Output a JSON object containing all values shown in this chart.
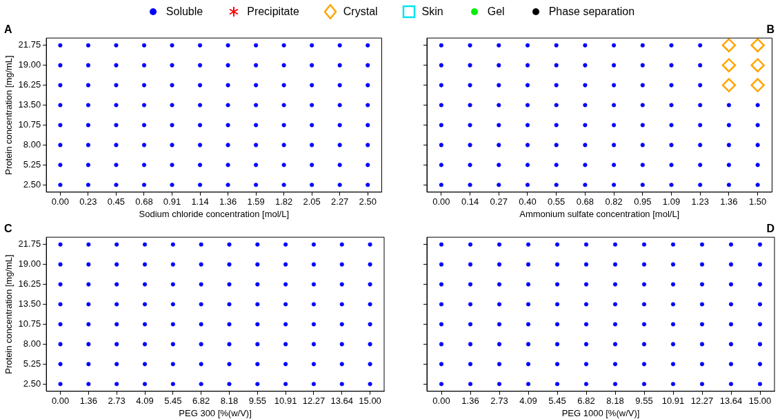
{
  "chart_data": [
    {
      "type": "scatter",
      "title": "A",
      "xlabel": "Sodium chloride concentration [mol/L]",
      "ylabel": "Protein concentration [mg/mL]",
      "legend": "top",
      "categories": [
        "0.00",
        "0.23",
        "0.45",
        "0.68",
        "0.91",
        "1.14",
        "1.36",
        "1.59",
        "1.82",
        "2.05",
        "2.27",
        "2.50"
      ],
      "ylim": [
        1.5,
        22.75
      ],
      "yticks": [
        {
          "value": 2.5,
          "label": "2.50"
        },
        {
          "value": 5.25,
          "label": "5.25"
        },
        {
          "value": 8,
          "label": "8.00"
        },
        {
          "value": 10.75,
          "label": "10.75"
        },
        {
          "value": 13.5,
          "label": "13.50"
        },
        {
          "value": 16.25,
          "label": "16.25"
        },
        {
          "value": 19,
          "label": "19.00"
        },
        {
          "value": 21.75,
          "label": "21.75"
        }
      ],
      "series": [
        {
          "name": "Soluble",
          "color": "#0000ff",
          "marker": "circle",
          "x": [
            "0.00",
            "0.00",
            "0.00",
            "0.00",
            "0.00",
            "0.00",
            "0.00",
            "0.00",
            "0.23",
            "0.23",
            "0.23",
            "0.23",
            "0.23",
            "0.23",
            "0.23",
            "0.23",
            "0.45",
            "0.45",
            "0.45",
            "0.45",
            "0.45",
            "0.45",
            "0.45",
            "0.45",
            "0.68",
            "0.68",
            "0.68",
            "0.68",
            "0.68",
            "0.68",
            "0.68",
            "0.68",
            "0.91",
            "0.91",
            "0.91",
            "0.91",
            "0.91",
            "0.91",
            "0.91",
            "0.91",
            "1.14",
            "1.14",
            "1.14",
            "1.14",
            "1.14",
            "1.14",
            "1.14",
            "1.14",
            "1.36",
            "1.36",
            "1.36",
            "1.36",
            "1.36",
            "1.36",
            "1.36",
            "1.36",
            "1.59",
            "1.59",
            "1.59",
            "1.59",
            "1.59",
            "1.59",
            "1.59",
            "1.59",
            "1.82",
            "1.82",
            "1.82",
            "1.82",
            "1.82",
            "1.82",
            "1.82",
            "1.82",
            "2.05",
            "2.05",
            "2.05",
            "2.05",
            "2.05",
            "2.05",
            "2.05",
            "2.05",
            "2.27",
            "2.27",
            "2.27",
            "2.27",
            "2.27",
            "2.27",
            "2.27",
            "2.27",
            "2.50",
            "2.50",
            "2.50",
            "2.50",
            "2.50",
            "2.50",
            "2.50",
            "2.50"
          ],
          "values": [
            2.5,
            5.25,
            8,
            10.75,
            13.5,
            16.25,
            19,
            21.75,
            2.5,
            5.25,
            8,
            10.75,
            13.5,
            16.25,
            19,
            21.75,
            2.5,
            5.25,
            8,
            10.75,
            13.5,
            16.25,
            19,
            21.75,
            2.5,
            5.25,
            8,
            10.75,
            13.5,
            16.25,
            19,
            21.75,
            2.5,
            5.25,
            8,
            10.75,
            13.5,
            16.25,
            19,
            21.75,
            2.5,
            5.25,
            8,
            10.75,
            13.5,
            16.25,
            19,
            21.75,
            2.5,
            5.25,
            8,
            10.75,
            13.5,
            16.25,
            19,
            21.75,
            2.5,
            5.25,
            8,
            10.75,
            13.5,
            16.25,
            19,
            21.75,
            2.5,
            5.25,
            8,
            10.75,
            13.5,
            16.25,
            19,
            21.75,
            2.5,
            5.25,
            8,
            10.75,
            13.5,
            16.25,
            19,
            21.75,
            2.5,
            5.25,
            8,
            10.75,
            13.5,
            16.25,
            19,
            21.75,
            2.5,
            5.25,
            8,
            10.75,
            13.5,
            16.25,
            19,
            21.75
          ]
        },
        {
          "name": "Precipitate",
          "color": "#ff0000",
          "marker": "star",
          "values": [
            null,
            null,
            null,
            null,
            null,
            null,
            null,
            null,
            null,
            null,
            null,
            null
          ]
        },
        {
          "name": "Crystal",
          "color": "#ffa500",
          "marker": "diamond",
          "values": [
            null,
            null,
            null,
            null,
            null,
            null,
            null,
            null,
            null,
            null,
            null,
            null
          ]
        },
        {
          "name": "Skin",
          "color": "#00e5ee",
          "marker": "square",
          "values": [
            null,
            null,
            null,
            null,
            null,
            null,
            null,
            null,
            null,
            null,
            null,
            null
          ]
        },
        {
          "name": "Gel",
          "color": "#00ee00",
          "marker": "circle",
          "values": [
            null,
            null,
            null,
            null,
            null,
            null,
            null,
            null,
            null,
            null,
            null,
            null
          ]
        },
        {
          "name": "Phase separation",
          "color": "#000000",
          "marker": "circle",
          "values": [
            null,
            null,
            null,
            null,
            null,
            null,
            null,
            null,
            null,
            null,
            null,
            null
          ]
        }
      ]
    },
    {
      "type": "scatter",
      "title": "B",
      "xlabel": "Ammonium sulfate concentration [mol/L]",
      "tick_labels": "x",
      "categories": [
        "0.00",
        "0.14",
        "0.27",
        "0.40",
        "0.55",
        "0.68",
        "0.82",
        "0.95",
        "1.09",
        "1.23",
        "1.36",
        "1.50"
      ],
      "ylim": [
        1.5,
        22.75
      ],
      "yticks": [
        {
          "value": 2.5,
          "label": null
        },
        {
          "value": 5.25,
          "label": null
        },
        {
          "value": 8,
          "label": null
        },
        {
          "value": 10.75,
          "label": null
        },
        {
          "value": 13.5,
          "label": null
        },
        {
          "value": 16.25,
          "label": null
        },
        {
          "value": 19,
          "label": null
        },
        {
          "value": 21.75,
          "label": null
        }
      ],
      "series": [
        {
          "color": "#0000ff",
          "marker": "circle",
          "x": [
            "0.00",
            "0.00",
            "0.00",
            "0.00",
            "0.00",
            "0.00",
            "0.00",
            "0.00",
            "0.14",
            "0.14",
            "0.14",
            "0.14",
            "0.14",
            "0.14",
            "0.14",
            "0.14",
            "0.27",
            "0.27",
            "0.27",
            "0.27",
            "0.27",
            "0.27",
            "0.27",
            "0.27",
            "0.40",
            "0.40",
            "0.40",
            "0.40",
            "0.40",
            "0.40",
            "0.40",
            "0.40",
            "0.55",
            "0.55",
            "0.55",
            "0.55",
            "0.55",
            "0.55",
            "0.55",
            "0.55",
            "0.68",
            "0.68",
            "0.68",
            "0.68",
            "0.68",
            "0.68",
            "0.68",
            "0.68",
            "0.82",
            "0.82",
            "0.82",
            "0.82",
            "0.82",
            "0.82",
            "0.82",
            "0.82",
            "0.95",
            "0.95",
            "0.95",
            "0.95",
            "0.95",
            "0.95",
            "0.95",
            "0.95",
            "1.09",
            "1.09",
            "1.09",
            "1.09",
            "1.09",
            "1.09",
            "1.09",
            "1.09",
            "1.23",
            "1.23",
            "1.23",
            "1.23",
            "1.23",
            "1.23",
            "1.23",
            "1.23",
            "1.36",
            "1.36",
            "1.36",
            "1.36",
            "1.36",
            "1.50",
            "1.50",
            "1.50",
            "1.50",
            "1.50"
          ],
          "values": [
            2.5,
            5.25,
            8,
            10.75,
            13.5,
            16.25,
            19,
            21.75,
            2.5,
            5.25,
            8,
            10.75,
            13.5,
            16.25,
            19,
            21.75,
            2.5,
            5.25,
            8,
            10.75,
            13.5,
            16.25,
            19,
            21.75,
            2.5,
            5.25,
            8,
            10.75,
            13.5,
            16.25,
            19,
            21.75,
            2.5,
            5.25,
            8,
            10.75,
            13.5,
            16.25,
            19,
            21.75,
            2.5,
            5.25,
            8,
            10.75,
            13.5,
            16.25,
            19,
            21.75,
            2.5,
            5.25,
            8,
            10.75,
            13.5,
            16.25,
            19,
            21.75,
            2.5,
            5.25,
            8,
            10.75,
            13.5,
            16.25,
            19,
            21.75,
            2.5,
            5.25,
            8,
            10.75,
            13.5,
            16.25,
            19,
            21.75,
            2.5,
            5.25,
            8,
            10.75,
            13.5,
            16.25,
            19,
            21.75,
            2.5,
            5.25,
            8,
            10.75,
            13.5,
            2.5,
            5.25,
            8,
            10.75,
            13.5
          ]
        },
        {
          "color": "#ffa500",
          "marker": "diamond",
          "x": [
            "1.36",
            "1.36",
            "1.36",
            "1.50",
            "1.50",
            "1.50"
          ],
          "values": [
            16.25,
            19,
            21.75,
            16.25,
            19,
            21.75
          ]
        }
      ]
    },
    {
      "type": "scatter",
      "title": "C",
      "xlabel": "PEG 300 [%(w/V)]",
      "ylabel": "Protein concentration [mg/mL]",
      "categories": [
        "0.00",
        "1.36",
        "2.73",
        "4.09",
        "5.45",
        "6.82",
        "8.18",
        "9.55",
        "10.91",
        "12.27",
        "13.64",
        "15.00"
      ],
      "ylim": [
        1.5,
        22.75
      ],
      "yticks": [
        {
          "value": 2.5,
          "label": "2.50"
        },
        {
          "value": 5.25,
          "label": "5.25"
        },
        {
          "value": 8,
          "label": "8.00"
        },
        {
          "value": 10.75,
          "label": "10.75"
        },
        {
          "value": 13.5,
          "label": "13.50"
        },
        {
          "value": 16.25,
          "label": "16.25"
        },
        {
          "value": 19,
          "label": "19.00"
        },
        {
          "value": 21.75,
          "label": "21.75"
        }
      ],
      "series": [
        {
          "color": "#0000ff",
          "marker": "circle",
          "x": [
            "0.00",
            "0.00",
            "0.00",
            "0.00",
            "0.00",
            "0.00",
            "0.00",
            "0.00",
            "1.36",
            "1.36",
            "1.36",
            "1.36",
            "1.36",
            "1.36",
            "1.36",
            "1.36",
            "2.73",
            "2.73",
            "2.73",
            "2.73",
            "2.73",
            "2.73",
            "2.73",
            "2.73",
            "4.09",
            "4.09",
            "4.09",
            "4.09",
            "4.09",
            "4.09",
            "4.09",
            "4.09",
            "5.45",
            "5.45",
            "5.45",
            "5.45",
            "5.45",
            "5.45",
            "5.45",
            "5.45",
            "6.82",
            "6.82",
            "6.82",
            "6.82",
            "6.82",
            "6.82",
            "6.82",
            "6.82",
            "8.18",
            "8.18",
            "8.18",
            "8.18",
            "8.18",
            "8.18",
            "8.18",
            "8.18",
            "9.55",
            "9.55",
            "9.55",
            "9.55",
            "9.55",
            "9.55",
            "9.55",
            "9.55",
            "10.91",
            "10.91",
            "10.91",
            "10.91",
            "10.91",
            "10.91",
            "10.91",
            "10.91",
            "12.27",
            "12.27",
            "12.27",
            "12.27",
            "12.27",
            "12.27",
            "12.27",
            "12.27",
            "13.64",
            "13.64",
            "13.64",
            "13.64",
            "13.64",
            "13.64",
            "13.64",
            "13.64",
            "15.00",
            "15.00",
            "15.00",
            "15.00",
            "15.00",
            "15.00",
            "15.00",
            "15.00"
          ],
          "values": [
            2.5,
            5.25,
            8,
            10.75,
            13.5,
            16.25,
            19,
            21.75,
            2.5,
            5.25,
            8,
            10.75,
            13.5,
            16.25,
            19,
            21.75,
            2.5,
            5.25,
            8,
            10.75,
            13.5,
            16.25,
            19,
            21.75,
            2.5,
            5.25,
            8,
            10.75,
            13.5,
            16.25,
            19,
            21.75,
            2.5,
            5.25,
            8,
            10.75,
            13.5,
            16.25,
            19,
            21.75,
            2.5,
            5.25,
            8,
            10.75,
            13.5,
            16.25,
            19,
            21.75,
            2.5,
            5.25,
            8,
            10.75,
            13.5,
            16.25,
            19,
            21.75,
            2.5,
            5.25,
            8,
            10.75,
            13.5,
            16.25,
            19,
            21.75,
            2.5,
            5.25,
            8,
            10.75,
            13.5,
            16.25,
            19,
            21.75,
            2.5,
            5.25,
            8,
            10.75,
            13.5,
            16.25,
            19,
            21.75,
            2.5,
            5.25,
            8,
            10.75,
            13.5,
            16.25,
            19,
            21.75,
            2.5,
            5.25,
            8,
            10.75,
            13.5,
            16.25,
            19,
            21.75
          ]
        }
      ]
    },
    {
      "type": "scatter",
      "title": "D",
      "xlabel": "PEG 1000 [%(w/V)]",
      "tick_labels": "x",
      "categories": [
        "0.00",
        "1.36",
        "2.73",
        "4.09",
        "5.45",
        "6.82",
        "8.18",
        "9.55",
        "10.91",
        "12.27",
        "13.64",
        "15.00"
      ],
      "ylim": [
        1.5,
        22.75
      ],
      "yticks": [
        {
          "value": 2.5,
          "label": null
        },
        {
          "value": 5.25,
          "label": null
        },
        {
          "value": 8,
          "label": null
        },
        {
          "value": 10.75,
          "label": null
        },
        {
          "value": 13.5,
          "label": null
        },
        {
          "value": 16.25,
          "label": null
        },
        {
          "value": 19,
          "label": null
        },
        {
          "value": 21.75,
          "label": null
        }
      ],
      "series": [
        {
          "color": "#0000ff",
          "marker": "circle",
          "x": [
            "0.00",
            "0.00",
            "0.00",
            "0.00",
            "0.00",
            "0.00",
            "0.00",
            "0.00",
            "1.36",
            "1.36",
            "1.36",
            "1.36",
            "1.36",
            "1.36",
            "1.36",
            "1.36",
            "2.73",
            "2.73",
            "2.73",
            "2.73",
            "2.73",
            "2.73",
            "2.73",
            "2.73",
            "4.09",
            "4.09",
            "4.09",
            "4.09",
            "4.09",
            "4.09",
            "4.09",
            "4.09",
            "5.45",
            "5.45",
            "5.45",
            "5.45",
            "5.45",
            "5.45",
            "5.45",
            "5.45",
            "6.82",
            "6.82",
            "6.82",
            "6.82",
            "6.82",
            "6.82",
            "6.82",
            "6.82",
            "8.18",
            "8.18",
            "8.18",
            "8.18",
            "8.18",
            "8.18",
            "8.18",
            "8.18",
            "9.55",
            "9.55",
            "9.55",
            "9.55",
            "9.55",
            "9.55",
            "9.55",
            "9.55",
            "10.91",
            "10.91",
            "10.91",
            "10.91",
            "10.91",
            "10.91",
            "10.91",
            "10.91",
            "12.27",
            "12.27",
            "12.27",
            "12.27",
            "12.27",
            "12.27",
            "12.27",
            "12.27",
            "13.64",
            "13.64",
            "13.64",
            "13.64",
            "13.64",
            "13.64",
            "13.64",
            "13.64",
            "15.00",
            "15.00",
            "15.00",
            "15.00",
            "15.00",
            "15.00",
            "15.00",
            "15.00"
          ],
          "values": [
            2.5,
            5.25,
            8,
            10.75,
            13.5,
            16.25,
            19,
            21.75,
            2.5,
            5.25,
            8,
            10.75,
            13.5,
            16.25,
            19,
            21.75,
            2.5,
            5.25,
            8,
            10.75,
            13.5,
            16.25,
            19,
            21.75,
            2.5,
            5.25,
            8,
            10.75,
            13.5,
            16.25,
            19,
            21.75,
            2.5,
            5.25,
            8,
            10.75,
            13.5,
            16.25,
            19,
            21.75,
            2.5,
            5.25,
            8,
            10.75,
            13.5,
            16.25,
            19,
            21.75,
            2.5,
            5.25,
            8,
            10.75,
            13.5,
            16.25,
            19,
            21.75,
            2.5,
            5.25,
            8,
            10.75,
            13.5,
            16.25,
            19,
            21.75,
            2.5,
            5.25,
            8,
            10.75,
            13.5,
            16.25,
            19,
            21.75,
            2.5,
            5.25,
            8,
            10.75,
            13.5,
            16.25,
            19,
            21.75,
            2.5,
            5.25,
            8,
            10.75,
            13.5,
            16.25,
            19,
            21.75,
            2.5,
            5.25,
            8,
            10.75,
            13.5,
            16.25,
            19,
            21.75
          ]
        }
      ]
    }
  ]
}
